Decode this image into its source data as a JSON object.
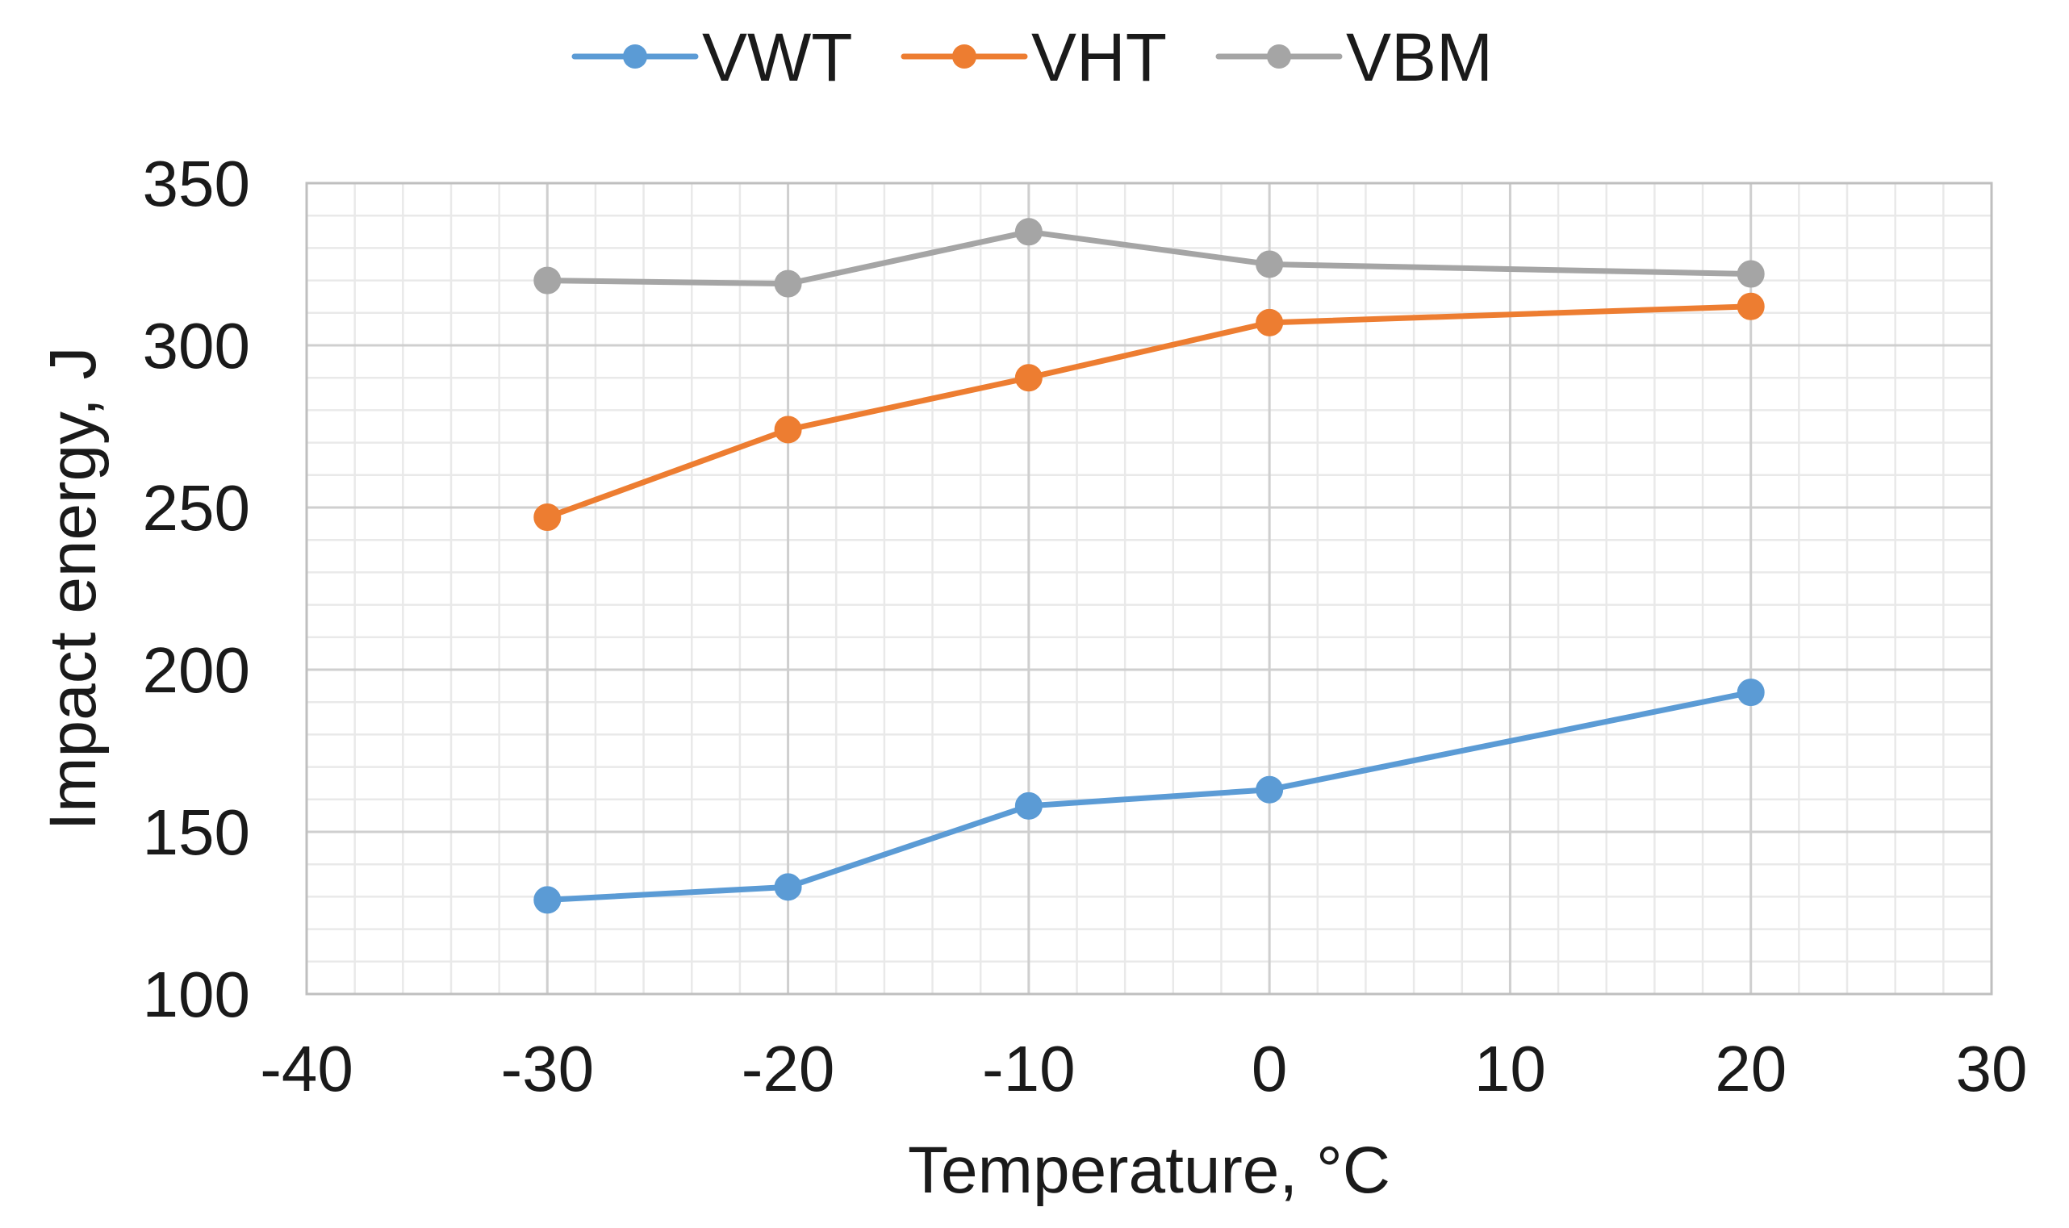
{
  "chart_data": {
    "type": "line",
    "title": "",
    "xlabel": "Temperature, °C",
    "ylabel": "Impact energy, J",
    "xlim": [
      -40,
      30
    ],
    "ylim": [
      100,
      350
    ],
    "x_major_step": 10,
    "x_minor_step": 2,
    "y_major_step": 50,
    "y_minor_step": 10,
    "x_ticks": [
      "-40",
      "-30",
      "-20",
      "-10",
      "0",
      "10",
      "20",
      "30"
    ],
    "y_ticks": [
      "100",
      "150",
      "200",
      "250",
      "300",
      "350"
    ],
    "grid": true,
    "legend_position": "top-center",
    "x": [
      -30,
      -20,
      -10,
      0,
      20
    ],
    "series": [
      {
        "name": "VWT",
        "color": "#5b9bd5",
        "values": [
          129,
          133,
          158,
          163,
          193
        ]
      },
      {
        "name": "VHT",
        "color": "#ed7d31",
        "values": [
          247,
          274,
          290,
          307,
          312
        ]
      },
      {
        "name": "VBM",
        "color": "#a5a5a5",
        "values": [
          320,
          319,
          335,
          325,
          322
        ]
      }
    ]
  }
}
